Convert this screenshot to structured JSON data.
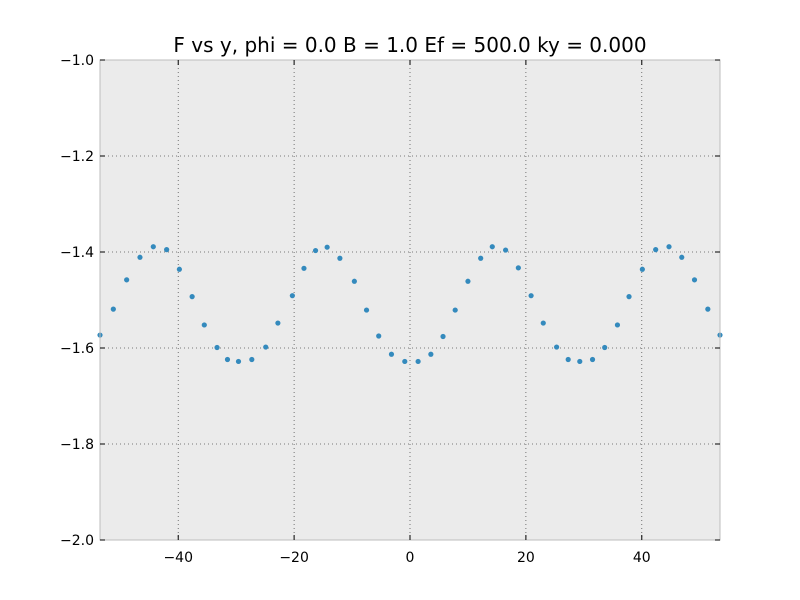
{
  "chart_data": {
    "type": "scatter",
    "title": "F vs y, phi = 0.0 B = 1.0 Ef = 500.0 ky = 0.000",
    "xlabel": "",
    "ylabel": "",
    "xlim": [
      -53.5,
      53.5
    ],
    "ylim": [
      -2.0,
      -1.0
    ],
    "grid": true,
    "grid_style": "dotted",
    "background": "#ebebeb",
    "marker_color": "#348abd",
    "x_ticks": [
      -40,
      -20,
      0,
      20,
      40
    ],
    "x_tick_labels": [
      "−40",
      "−20",
      "0",
      "20",
      "40"
    ],
    "y_ticks": [
      -1.0,
      -1.2,
      -1.4,
      -1.6,
      -1.8,
      -2.0
    ],
    "y_tick_labels": [
      "−1.0",
      "−1.2",
      "−1.4",
      "−1.6",
      "−1.8",
      "−2.0"
    ],
    "series": [
      {
        "x": [
          -53.5,
          -51.2,
          -48.9,
          -46.6,
          -44.3,
          -42.0,
          -39.8,
          -37.6,
          -35.5,
          -33.3,
          -31.5,
          -29.6,
          -27.3,
          -24.9,
          -22.8,
          -20.3,
          -18.3,
          -16.3,
          -14.3,
          -12.1,
          -9.6,
          -7.5,
          -5.4,
          -3.2,
          -0.9,
          1.4,
          3.6,
          5.7,
          7.8,
          10.0,
          12.2,
          14.2,
          16.5,
          18.7,
          20.9,
          23.0,
          25.3,
          27.3,
          29.3,
          31.5,
          33.6,
          35.8,
          37.8,
          40.1,
          42.4,
          44.7,
          46.9,
          49.1,
          51.4,
          53.5
        ],
        "y": [
          -1.573,
          -1.519,
          -1.458,
          -1.411,
          -1.389,
          -1.395,
          -1.436,
          -1.493,
          -1.552,
          -1.599,
          -1.624,
          -1.628,
          -1.624,
          -1.598,
          -1.548,
          -1.491,
          -1.434,
          -1.397,
          -1.39,
          -1.413,
          -1.461,
          -1.521,
          -1.575,
          -1.613,
          -1.628,
          -1.628,
          -1.613,
          -1.576,
          -1.521,
          -1.461,
          -1.413,
          -1.389,
          -1.396,
          -1.433,
          -1.491,
          -1.548,
          -1.598,
          -1.624,
          -1.628,
          -1.624,
          -1.599,
          -1.552,
          -1.493,
          -1.436,
          -1.395,
          -1.389,
          -1.411,
          -1.458,
          -1.519,
          -1.573
        ]
      }
    ]
  }
}
